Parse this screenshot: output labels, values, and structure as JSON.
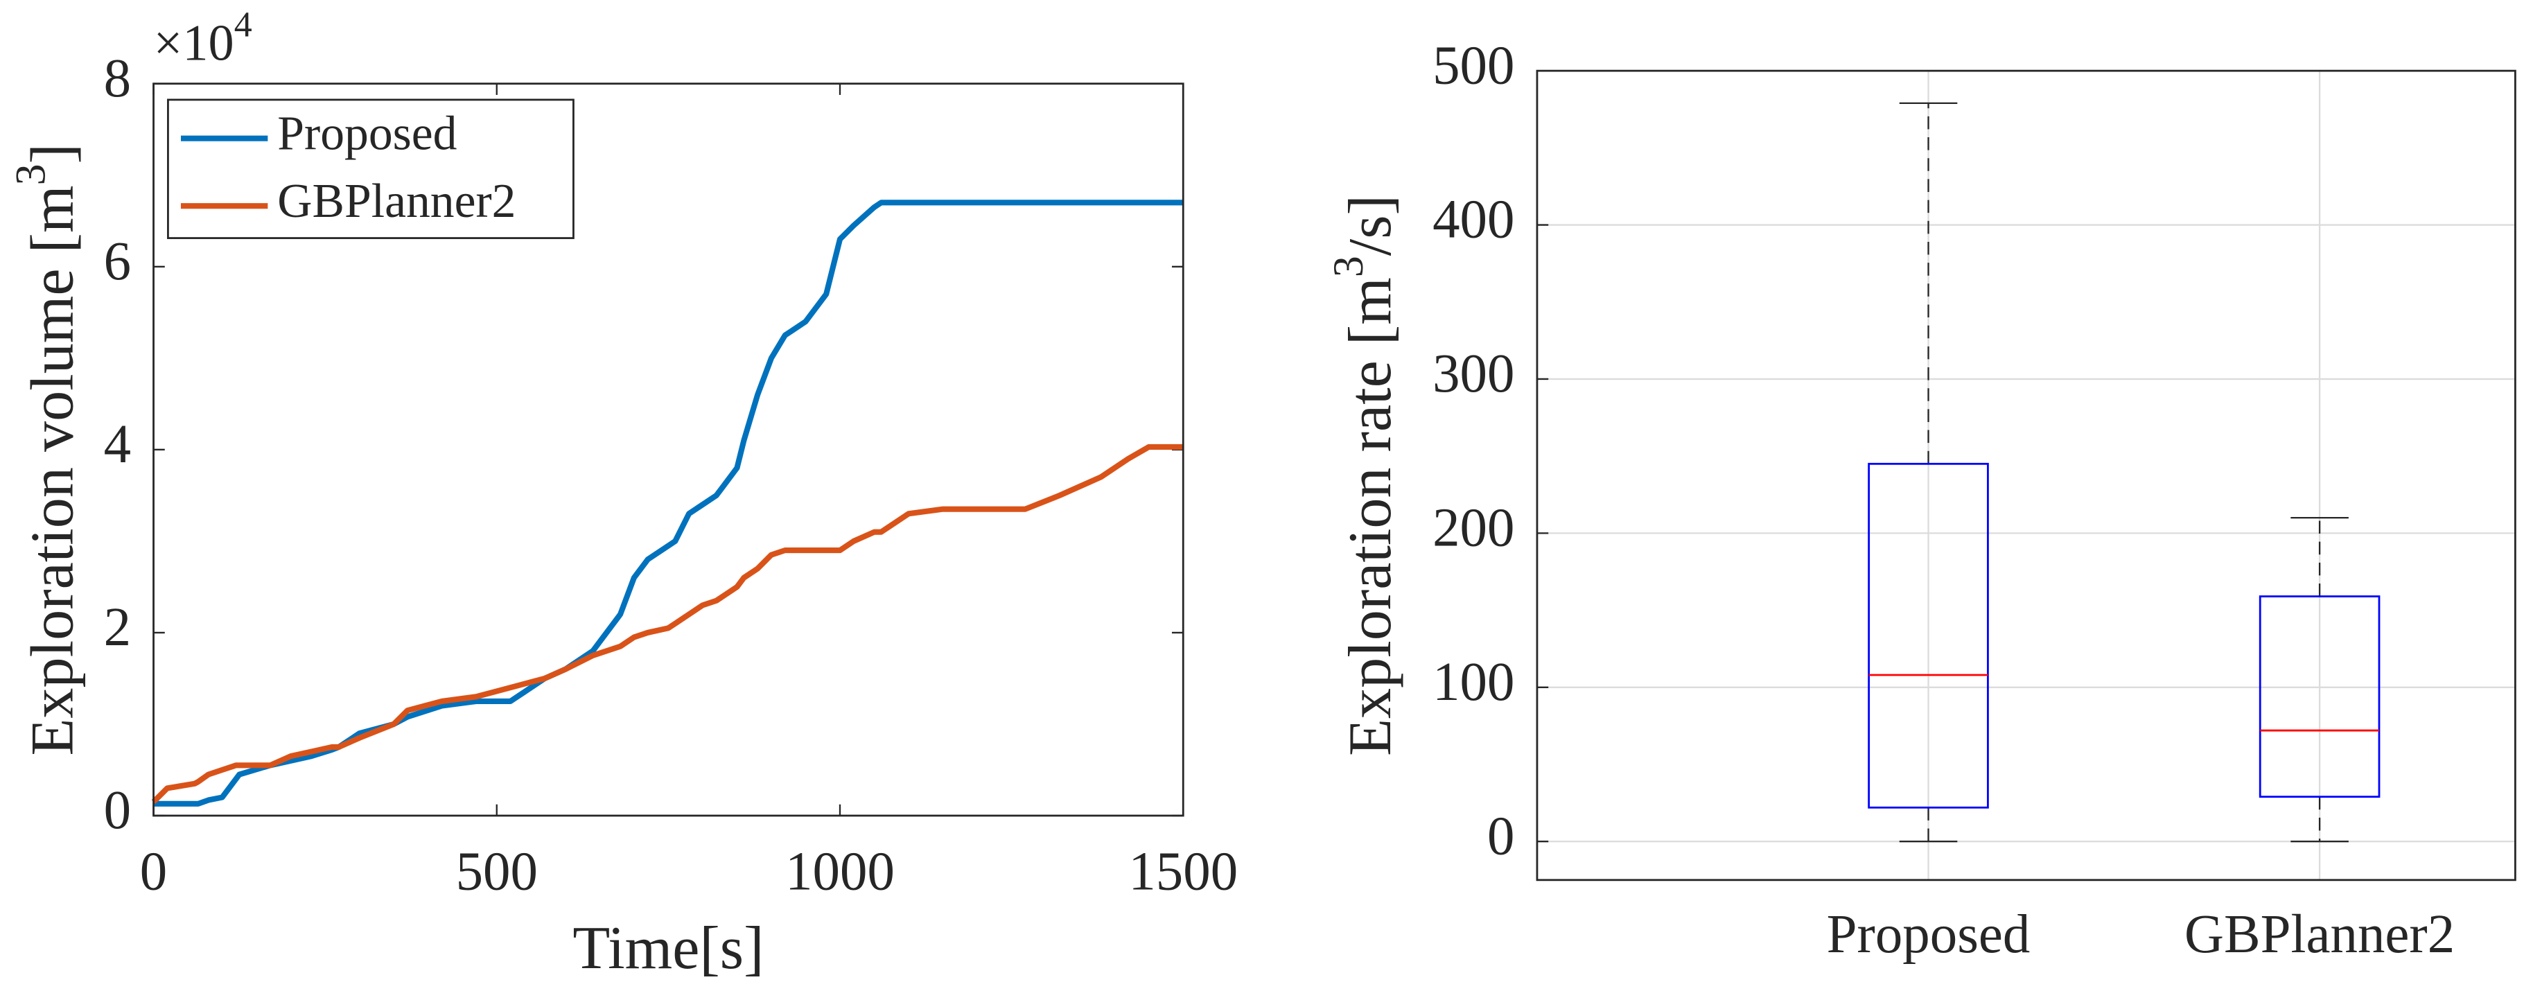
{
  "chart_data": [
    {
      "type": "line",
      "xlabel": "Time[s]",
      "ylabel": [
        "Exploration volume [m",
        "3",
        "]"
      ],
      "y_multiplier": [
        "×10",
        "4"
      ],
      "x": [
        0,
        20,
        60,
        65,
        80,
        100,
        120,
        125,
        170,
        200,
        230,
        260,
        270,
        300,
        350,
        370,
        420,
        470,
        520,
        570,
        600,
        640,
        680,
        700,
        720,
        750,
        760,
        780,
        800,
        820,
        830,
        850,
        860,
        880,
        900,
        920,
        930,
        950,
        980,
        1000,
        1020,
        1050,
        1060,
        1100,
        1150,
        1270,
        1320,
        1380,
        1420,
        1450,
        1500
      ],
      "series": [
        {
          "name": "Proposed",
          "color": "#0072BD",
          "values": [
            0.13,
            0.13,
            0.13,
            0.13,
            0.17,
            0.2,
            0.4,
            0.45,
            0.55,
            0.6,
            0.65,
            0.72,
            0.75,
            0.9,
            1.0,
            1.08,
            1.2,
            1.25,
            1.25,
            1.5,
            1.6,
            1.8,
            2.2,
            2.6,
            2.8,
            2.95,
            3.0,
            3.3,
            3.4,
            3.5,
            3.6,
            3.8,
            4.1,
            4.6,
            5.0,
            5.25,
            5.3,
            5.4,
            5.7,
            6.3,
            6.45,
            6.65,
            6.7,
            6.7,
            6.7,
            6.7,
            6.7,
            6.7,
            6.7,
            6.7,
            6.7
          ]
        },
        {
          "name": "GBPlanner2",
          "color": "#D95319",
          "values": [
            0.15,
            0.3,
            0.35,
            0.37,
            0.45,
            0.5,
            0.55,
            0.55,
            0.55,
            0.65,
            0.7,
            0.75,
            0.75,
            0.85,
            1.0,
            1.15,
            1.25,
            1.3,
            1.4,
            1.5,
            1.6,
            1.75,
            1.85,
            1.95,
            2.0,
            2.05,
            2.1,
            2.2,
            2.3,
            2.35,
            2.4,
            2.5,
            2.6,
            2.7,
            2.85,
            2.9,
            2.9,
            2.9,
            2.9,
            2.9,
            3.0,
            3.1,
            3.1,
            3.3,
            3.35,
            3.35,
            3.5,
            3.7,
            3.9,
            4.03,
            4.03
          ]
        }
      ],
      "xlim": [
        0,
        1500
      ],
      "xticks": [
        0,
        500,
        1000,
        1500
      ],
      "ylim": [
        0,
        8
      ],
      "yticks": [
        0,
        2,
        4,
        6,
        8
      ],
      "grid": false,
      "legend": "top-left"
    },
    {
      "type": "box",
      "ylabel": [
        "Exploration rate [m",
        "3",
        "/s]"
      ],
      "categories": [
        "Proposed",
        "GBPlanner2"
      ],
      "boxes": [
        {
          "min": 0,
          "q1": 22,
          "median": 108,
          "q3": 245,
          "max": 479
        },
        {
          "min": 0,
          "q1": 29,
          "median": 72,
          "q3": 159,
          "max": 210
        }
      ],
      "box_color": "#0000FF",
      "median_color": "#FF0000",
      "ylim": [
        -25,
        500
      ],
      "yticks": [
        0,
        100,
        200,
        300,
        400,
        500
      ],
      "grid": true
    }
  ]
}
